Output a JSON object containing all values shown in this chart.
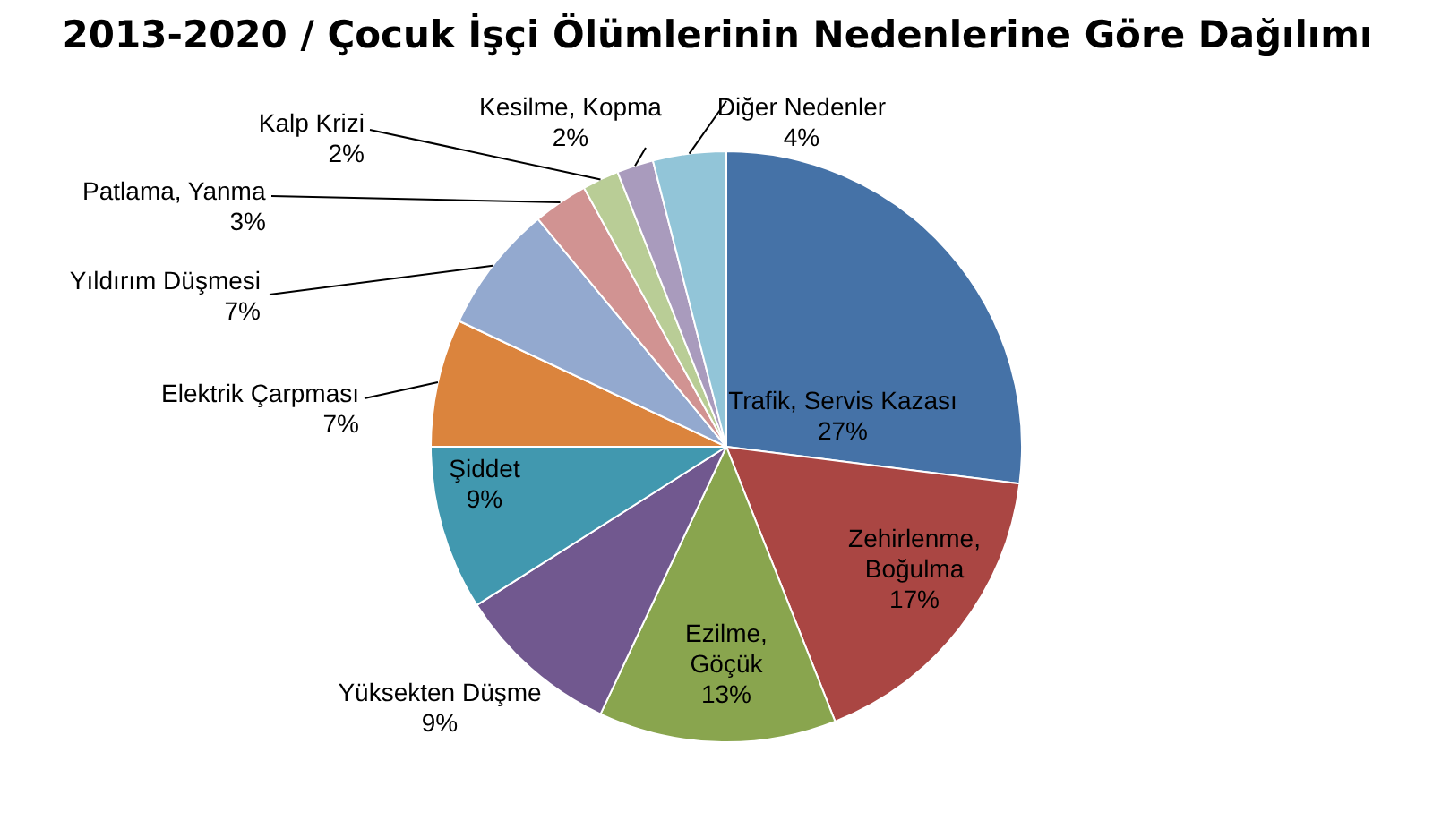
{
  "chart_data": {
    "type": "pie",
    "title": "2013-2020 / Çocuk İşçi Ölümlerinin Nedenlerine Göre Dağılımı",
    "categories": [
      "Trafik, Servis Kazası",
      "Zehirlenme,\nBoğulma",
      "Ezilme,\nGöçük",
      "Yüksekten Düşme",
      "Şiddet",
      "Elektrik Çarpması",
      "Yıldırım Düşmesi",
      "Patlama, Yanma",
      "Kalp Krizi",
      "Kesilme, Kopma",
      "Diğer Nedenler"
    ],
    "values": [
      27,
      17,
      13,
      9,
      9,
      7,
      7,
      3,
      2,
      2,
      4
    ],
    "value_labels": [
      "27%",
      "17%",
      "13%",
      "9%",
      "9%",
      "7%",
      "7%",
      "3%",
      "2%",
      "2%",
      "4%"
    ],
    "colors": [
      "#4572a7",
      "#aa4643",
      "#89a54e",
      "#71588f",
      "#4198af",
      "#db843d",
      "#93a9cf",
      "#d19392",
      "#b9cd96",
      "#a99bbd",
      "#92c5d8"
    ]
  }
}
